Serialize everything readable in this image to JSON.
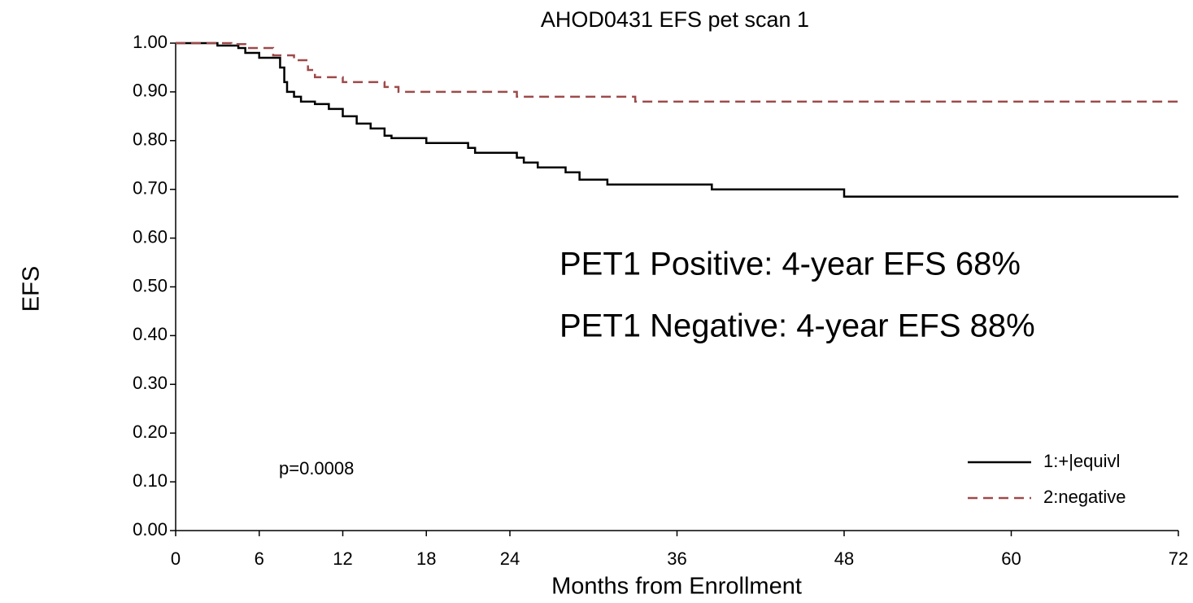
{
  "chart_data": {
    "type": "step",
    "title": "AHOD0431 EFS pet scan 1",
    "x_label": "Months from Enrollment",
    "y_label": "EFS",
    "annotations": [
      "p=0.0008",
      "PET1 Positive: 4-year EFS 68%",
      "PET1 Negative: 4-year EFS 88%"
    ],
    "xlim": [
      0,
      72
    ],
    "ylim": [
      0,
      1
    ],
    "xticks": [
      0,
      6,
      12,
      18,
      24,
      36,
      48,
      60,
      72
    ],
    "yticks": [
      {
        "value": 0,
        "label": "0.00"
      },
      {
        "value": 0.1,
        "label": "0.10"
      },
      {
        "value": 0.2,
        "label": "0.20"
      },
      {
        "value": 0.3,
        "label": "0.30"
      },
      {
        "value": 0.4,
        "label": "0.40"
      },
      {
        "value": 0.5,
        "label": "0.50"
      },
      {
        "value": 0.6,
        "label": "0.60"
      },
      {
        "value": 0.7,
        "label": "0.70"
      },
      {
        "value": 0.8,
        "label": "0.80"
      },
      {
        "value": 0.9,
        "label": "0.90"
      },
      {
        "value": 1,
        "label": "1.00"
      }
    ],
    "legend": "lower right",
    "series": [
      {
        "name": "1:+|equivl",
        "color": "#000000",
        "dash": false,
        "x": [
          0,
          3,
          4.5,
          5,
          6,
          7.5,
          7.8,
          8,
          8.5,
          9,
          10,
          11,
          12,
          13,
          14,
          15,
          15.5,
          18,
          21,
          21.5,
          24.5,
          25,
          26,
          28,
          29,
          31,
          38.5,
          48,
          72
        ],
        "values": [
          1.0,
          0.995,
          0.99,
          0.98,
          0.97,
          0.95,
          0.92,
          0.9,
          0.89,
          0.88,
          0.875,
          0.865,
          0.85,
          0.835,
          0.825,
          0.81,
          0.805,
          0.795,
          0.785,
          0.775,
          0.765,
          0.755,
          0.745,
          0.735,
          0.72,
          0.71,
          0.7,
          0.685,
          0.685
        ]
      },
      {
        "name": "2:negative",
        "color": "#9e4a4a",
        "dash": true,
        "x": [
          0,
          4,
          5,
          7,
          8.5,
          9.5,
          10,
          12,
          15,
          16,
          24.5,
          33,
          72
        ],
        "values": [
          1.0,
          0.998,
          0.99,
          0.975,
          0.965,
          0.945,
          0.93,
          0.92,
          0.91,
          0.9,
          0.89,
          0.88,
          0.88
        ]
      }
    ]
  }
}
